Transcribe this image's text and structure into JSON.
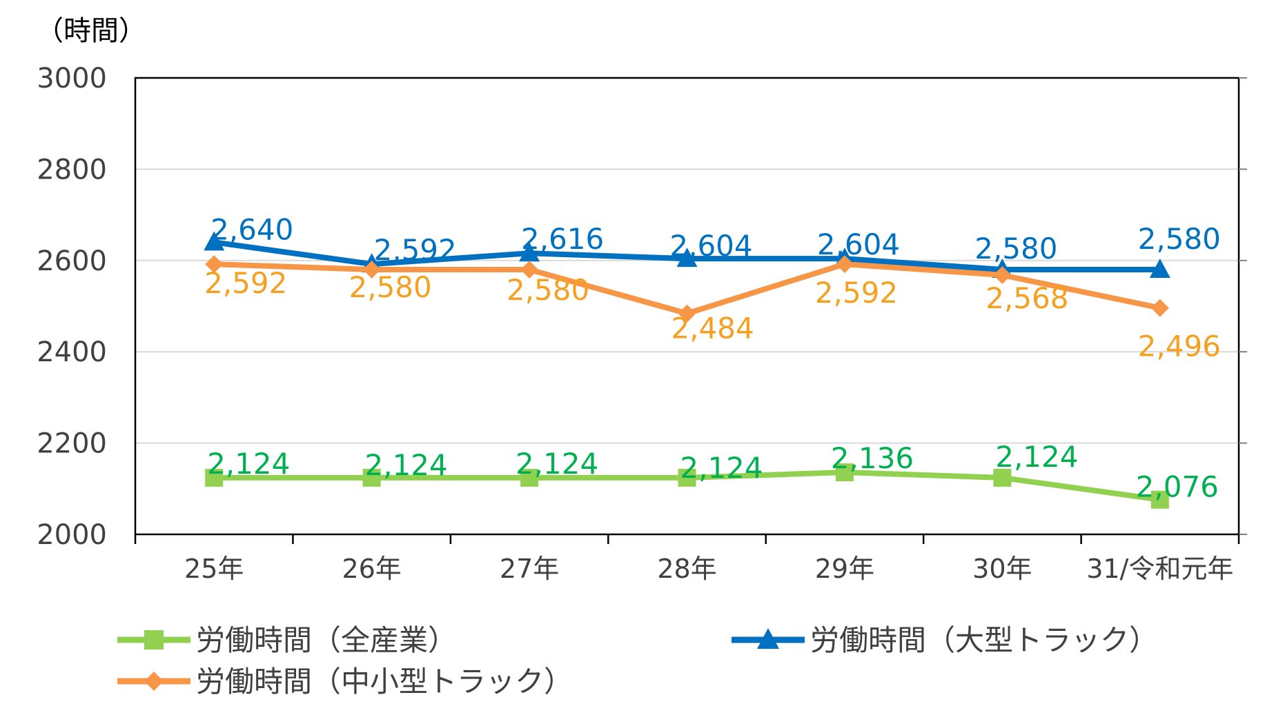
{
  "chart_data": {
    "type": "line",
    "unit_label": "（時間）",
    "categories": [
      "25年",
      "26年",
      "27年",
      "28年",
      "29年",
      "30年",
      "31/令和元年"
    ],
    "y_ticks": [
      "3000",
      "2800",
      "2600",
      "2400",
      "2200",
      "2000"
    ],
    "ylim": [
      2000,
      3000
    ],
    "grid": true,
    "legend_position": "bottom",
    "series": [
      {
        "name": "労働時間（全産業）",
        "color": "#92d050",
        "label_color": "#00b050",
        "marker": "square",
        "values": [
          2124,
          2124,
          2124,
          2124,
          2136,
          2124,
          2076
        ],
        "labels": [
          "2,124",
          "2,124",
          "2,124",
          "2,124",
          "2,136",
          "2,124",
          "2,076"
        ]
      },
      {
        "name": "労働時間（大型トラック）",
        "color": "#0070c0",
        "label_color": "#0070c0",
        "marker": "triangle",
        "values": [
          2640,
          2592,
          2616,
          2604,
          2604,
          2580,
          2580
        ],
        "labels": [
          "2,640",
          "2,592",
          "2,616",
          "2,604",
          "2,604",
          "2,580",
          "2,580"
        ]
      },
      {
        "name": "労働時間（中小型トラック）",
        "color": "#f79646",
        "label_color": "#f5a020",
        "marker": "diamond",
        "values": [
          2592,
          2580,
          2580,
          2484,
          2592,
          2568,
          2496
        ],
        "labels": [
          "2,592",
          "2,580",
          "2,580",
          "2,484",
          "2,592",
          "2,568",
          "2,496"
        ]
      }
    ]
  }
}
